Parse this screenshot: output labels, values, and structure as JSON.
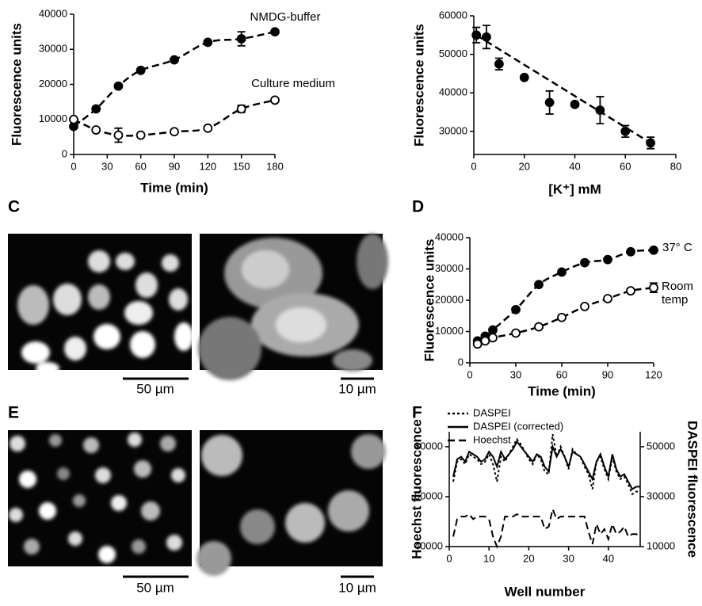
{
  "figure": {
    "panel_labels": [
      "C",
      "D",
      "E",
      "F"
    ],
    "scale_bars": [
      "50 µm",
      "10 µm",
      "50 µm",
      "10 µm"
    ]
  },
  "chart_data": [
    {
      "type": "line",
      "xlabel": "Time (min)",
      "ylabel": "Fluorescence units",
      "xlim": [
        0,
        180
      ],
      "xticks": [
        0,
        30,
        60,
        90,
        120,
        150,
        180
      ],
      "ylim": [
        0,
        40000
      ],
      "yticks": [
        0,
        10000,
        20000,
        30000,
        40000
      ],
      "series": [
        {
          "name": "NMDG-buffer",
          "color": "#000000",
          "marker": "filled",
          "style": "dash",
          "x": [
            0,
            20,
            40,
            60,
            90,
            120,
            150,
            180
          ],
          "values": [
            8000,
            13000,
            19500,
            24000,
            27000,
            32000,
            33000,
            35000
          ],
          "errors": [
            null,
            null,
            null,
            null,
            null,
            null,
            2000,
            null
          ]
        },
        {
          "name": "Culture medium",
          "color": "#000000",
          "marker": "open",
          "style": "dash",
          "x": [
            0,
            20,
            40,
            60,
            90,
            120,
            150,
            180
          ],
          "values": [
            10000,
            7000,
            5500,
            5500,
            6500,
            7500,
            13000,
            15500
          ],
          "errors": [
            null,
            null,
            2000,
            null,
            null,
            null,
            1000,
            null
          ]
        }
      ]
    },
    {
      "type": "scatter",
      "xlabel": "[K⁺] mM",
      "ylabel": "Fluorescence units",
      "xlim": [
        0,
        80
      ],
      "xticks": [
        0,
        20,
        40,
        60,
        80
      ],
      "ylim": [
        24000,
        60000
      ],
      "yticks": [
        30000,
        40000,
        50000,
        60000
      ],
      "series": [
        {
          "name": null,
          "color": "#000000",
          "marker": "filled",
          "style": "dash",
          "x": [
            1,
            5,
            10,
            20,
            30,
            40,
            50,
            60,
            70
          ],
          "values": [
            55000,
            54500,
            47500,
            44000,
            37500,
            37000,
            35500,
            30000,
            27000
          ],
          "errors": [
            2000,
            3000,
            1500,
            null,
            3000,
            null,
            3500,
            1500,
            1500
          ]
        }
      ]
    },
    {
      "type": "line",
      "xlabel": "Time (min)",
      "ylabel": "Fluorescence units",
      "xlim": [
        0,
        120
      ],
      "xticks": [
        0,
        30,
        60,
        90,
        120
      ],
      "ylim": [
        0,
        40000
      ],
      "yticks": [
        0,
        10000,
        20000,
        30000,
        40000
      ],
      "series": [
        {
          "name": "37° C",
          "color": "#000000",
          "marker": "filled",
          "style": "dash",
          "x": [
            5,
            10,
            15,
            30,
            45,
            60,
            75,
            90,
            105,
            120
          ],
          "values": [
            7000,
            8500,
            10500,
            17000,
            25000,
            29000,
            32000,
            33000,
            35500,
            36000
          ],
          "errors": [
            null,
            null,
            null,
            null,
            null,
            null,
            null,
            null,
            null,
            null
          ]
        },
        {
          "name": "Room temp",
          "color": "#000000",
          "marker": "open",
          "style": "dash",
          "x": [
            5,
            10,
            15,
            30,
            45,
            60,
            75,
            90,
            105,
            120
          ],
          "values": [
            6000,
            7000,
            8000,
            9500,
            11500,
            14500,
            18000,
            20500,
            23000,
            24000
          ],
          "errors": [
            null,
            null,
            null,
            null,
            null,
            null,
            null,
            null,
            null,
            1500
          ]
        }
      ]
    },
    {
      "type": "line",
      "xlabel": "Well number",
      "ylabel": "Hoechst fluorescence",
      "y2label": "DASPEI fluorescence",
      "legend": "upper left",
      "xlim": [
        0,
        48
      ],
      "xticks": [
        0,
        10,
        20,
        30,
        40
      ],
      "ylim": [
        40000,
        86000
      ],
      "yticks": [
        40000,
        60000,
        80000
      ],
      "y2lim": [
        10000,
        56000
      ],
      "y2ticks": [
        10000,
        30000,
        50000
      ],
      "x": [
        1,
        2,
        3,
        4,
        5,
        6,
        7,
        8,
        9,
        10,
        11,
        12,
        13,
        14,
        15,
        16,
        17,
        18,
        19,
        20,
        21,
        22,
        23,
        24,
        25,
        26,
        27,
        28,
        29,
        30,
        31,
        32,
        33,
        34,
        35,
        36,
        37,
        38,
        39,
        40,
        41,
        42,
        43,
        44,
        45,
        46,
        47,
        48
      ],
      "series": [
        {
          "name": "DASPEI",
          "color": "#000000",
          "style": "dot",
          "axis": "y2",
          "values": [
            36000,
            44000,
            45000,
            43000,
            47000,
            46000,
            45000,
            43000,
            44000,
            47000,
            43000,
            36000,
            46000,
            44000,
            47000,
            50000,
            53000,
            51000,
            48000,
            45000,
            43000,
            47000,
            45000,
            40000,
            39000,
            55000,
            46000,
            50000,
            46000,
            41000,
            49000,
            47000,
            46000,
            42000,
            39000,
            33000,
            44000,
            46000,
            41000,
            37000,
            46000,
            40000,
            37000,
            38000,
            35000,
            31000,
            32000,
            32000
          ]
        },
        {
          "name": "DASPEI (corrected)",
          "color": "#000000",
          "style": "solid",
          "axis": "y2",
          "values": [
            38000,
            45000,
            46000,
            44000,
            48000,
            47000,
            46000,
            44000,
            45000,
            48000,
            46000,
            42000,
            48000,
            45000,
            47000,
            49000,
            52000,
            50000,
            48000,
            46000,
            44000,
            47000,
            46000,
            42000,
            40000,
            50000,
            46000,
            49000,
            46000,
            42000,
            48000,
            47000,
            46000,
            43000,
            40000,
            37000,
            44000,
            47000,
            42000,
            38000,
            47000,
            41000,
            38000,
            39000,
            36000,
            33000,
            34000,
            34000
          ]
        },
        {
          "name": "Hoechst",
          "color": "#000000",
          "style": "dash",
          "values": [
            44000,
            51000,
            52000,
            52000,
            53000,
            51000,
            52000,
            52000,
            52000,
            51000,
            44000,
            40000,
            44000,
            52000,
            52000,
            52000,
            53000,
            52000,
            52000,
            52000,
            52000,
            52000,
            52000,
            47000,
            48000,
            55000,
            51000,
            52000,
            52000,
            52000,
            52000,
            52000,
            52000,
            52000,
            46000,
            41000,
            49000,
            45000,
            47000,
            43000,
            49000,
            45000,
            46000,
            48000,
            44000,
            45000,
            45000,
            44000
          ]
        }
      ]
    }
  ]
}
